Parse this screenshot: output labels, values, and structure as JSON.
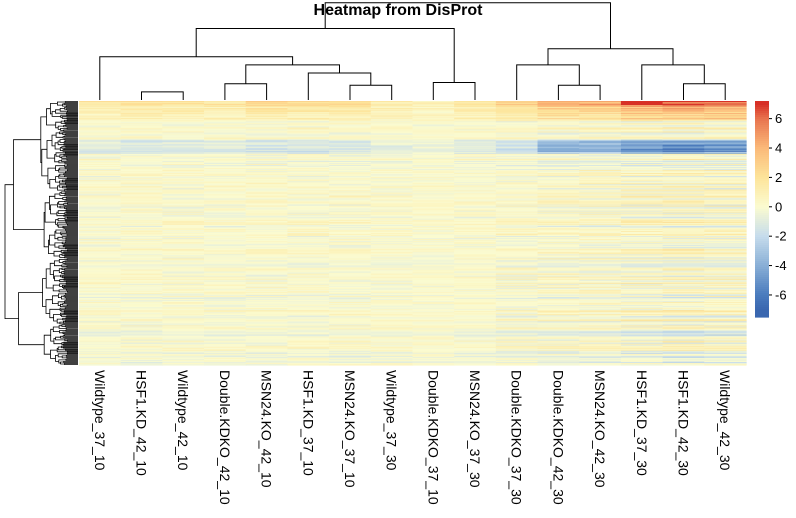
{
  "chart_data": {
    "type": "heatmap",
    "title": "Heatmap from DisProt",
    "columns": [
      "Wildtype_37_10",
      "HSF1.KD_42_10",
      "Wildtype_42_10",
      "Double.KDKO_42_10",
      "MSN24.KO_42_10",
      "HSF1.KD_37_10",
      "MSN24.KO_37_10",
      "Wildtype_37_30",
      "Double.KDKO_37_10",
      "MSN24.KO_37_30",
      "Double.KDKO_37_30",
      "Double.KDKO_42_30",
      "MSN24.KO_42_30",
      "HSF1.KD_37_30",
      "HSF1.KD_42_30",
      "Wildtype_42_30"
    ],
    "column_dendrogram": [
      {
        "merge": [
          1,
          2
        ],
        "height": 0.06
      },
      {
        "merge": [
          3,
          4
        ],
        "height": 0.12
      },
      {
        "merge": [
          6,
          7
        ],
        "height": 0.11
      },
      {
        "merge": [
          8,
          9
        ],
        "height": 0.13
      },
      {
        "merge": [
          5,
          6.5
        ],
        "height": 0.2
      },
      {
        "merge": [
          3.5,
          5.75
        ],
        "height": 0.26
      },
      {
        "merge": [
          0,
          4.625
        ],
        "height": 0.32
      },
      {
        "merge": [
          8.5,
          2.3125
        ],
        "height": 0.53
      },
      {
        "merge": [
          11,
          12
        ],
        "height": 0.11
      },
      {
        "merge": [
          10,
          11.5
        ],
        "height": 0.26
      },
      {
        "merge": [
          14,
          15
        ],
        "height": 0.12
      },
      {
        "merge": [
          13,
          14.5
        ],
        "height": 0.26
      },
      {
        "merge": [
          10.75,
          13.75
        ],
        "height": 0.38
      },
      {
        "merge": [
          5.40625,
          12.25
        ],
        "height": 0.72
      }
    ],
    "n_rows": 260,
    "color_scale": {
      "stops": [
        -7,
        -6,
        -4,
        -2,
        0,
        2,
        4,
        6,
        7
      ],
      "colors": [
        "#3a67b0",
        "#4a7bbd",
        "#89afd6",
        "#c6dcec",
        "#fbfbd0",
        "#fde49a",
        "#fbb979",
        "#e8734e",
        "#d73027"
      ]
    },
    "colorbar_ticks": [
      6,
      4,
      2,
      0,
      -2,
      -4,
      -6
    ],
    "colorbar_range": [
      -7.5,
      7.2
    ]
  }
}
